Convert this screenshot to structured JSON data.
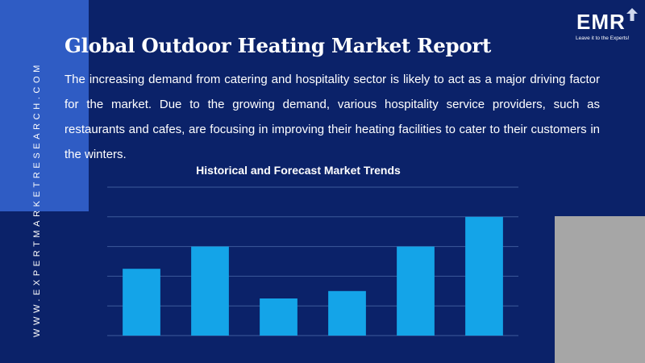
{
  "side_url": "WWW.EXPERTMARKETRESEARCH.COM",
  "logo": {
    "name": "EMR",
    "tagline": "Leave it to the Experts!",
    "icon": "upward-arrow-icon"
  },
  "title": "Global Outdoor Heating Market Report",
  "description": "The increasing demand from catering and hospitality sector is likely to act as a major driving factor for the market. Due to the growing demand, various hospitality service providers, such as restaurants and cafes, are focusing in improving their heating facilities to cater to their customers in the winters.",
  "colors": {
    "background": "#0b2269",
    "accent": "#2f5cc4",
    "bar": "#14a4e8",
    "grid": "#3c5a9a",
    "gray": "#a6a6a6"
  },
  "chart_data": {
    "type": "bar",
    "title": "Historical and Forecast Market Trends",
    "categories": [
      "",
      "",
      "",
      "",
      "",
      ""
    ],
    "values": [
      2.25,
      3.0,
      1.25,
      1.5,
      3.0,
      4.0
    ],
    "ylim": [
      0,
      5
    ],
    "grid": true,
    "legend": "none",
    "xlabel": "",
    "ylabel": ""
  }
}
